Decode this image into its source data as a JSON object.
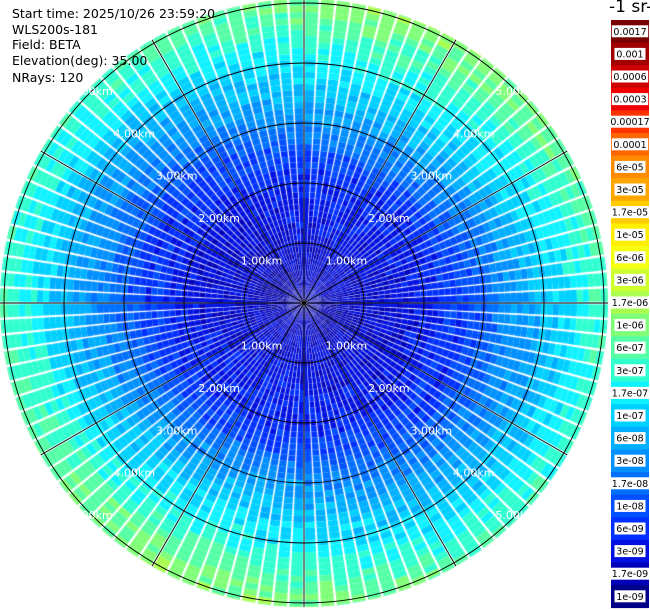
{
  "header": {
    "start_time": "Start time: 2025/10/26 23:59:20",
    "device": "WLS200s-181",
    "field": "Field: BETA",
    "elevation": "Elevation(deg): 35.00",
    "nrays": "NRays: 120"
  },
  "colorbar_unit": "-1 sr-",
  "chart_data": {
    "type": "heatmap",
    "projection": "polar",
    "field": "BETA",
    "n_rays": 120,
    "range_rings_km": [
      1.0,
      2.0,
      3.0,
      4.0,
      5.0
    ],
    "ring_labels": [
      "1.00km",
      "2.00km",
      "3.00km",
      "4.00km",
      "5.00km"
    ],
    "azimuth_spokes_deg": [
      0,
      30,
      60,
      90,
      120,
      150,
      180,
      210,
      240,
      270,
      300,
      330
    ],
    "radial_pattern_km_log10beta": [
      [
        0.0,
        -8.7
      ],
      [
        0.5,
        -8.6
      ],
      [
        1.0,
        -8.5
      ],
      [
        1.5,
        -8.4
      ],
      [
        2.0,
        -8.3
      ],
      [
        2.5,
        -8.0
      ],
      [
        3.0,
        -7.6
      ],
      [
        3.5,
        -7.2
      ],
      [
        4.0,
        -6.9
      ],
      [
        4.5,
        -6.5
      ],
      [
        5.0,
        -6.2
      ]
    ],
    "colorbar": {
      "scale": "log",
      "tick_labels": [
        "0.0017",
        "0.001",
        "0.0006",
        "0.0003",
        "0.00017",
        "0.0001",
        "6e-05",
        "3e-05",
        "1.7e-05",
        "1e-05",
        "6e-06",
        "3e-06",
        "1.7e-06",
        "1e-06",
        "6e-07",
        "3e-07",
        "1.7e-07",
        "1e-07",
        "6e-08",
        "3e-08",
        "1.7e-08",
        "1e-08",
        "6e-09",
        "3e-09",
        "1.7e-09",
        "1e-09"
      ],
      "colors": [
        "#7a0000",
        "#a00000",
        "#cc0000",
        "#f00000",
        "#ff3300",
        "#ff6600",
        "#ff8c00",
        "#ffa500",
        "#ffcc00",
        "#ffee00",
        "#f5ff10",
        "#d0ff30",
        "#a8ff50",
        "#80ff78",
        "#55ffa5",
        "#30ffd0",
        "#10f2ff",
        "#00d0ff",
        "#00b0ff",
        "#0090ff",
        "#0070ff",
        "#0050ff",
        "#0030ff",
        "#0010e0",
        "#0000b8",
        "#000088"
      ]
    }
  }
}
